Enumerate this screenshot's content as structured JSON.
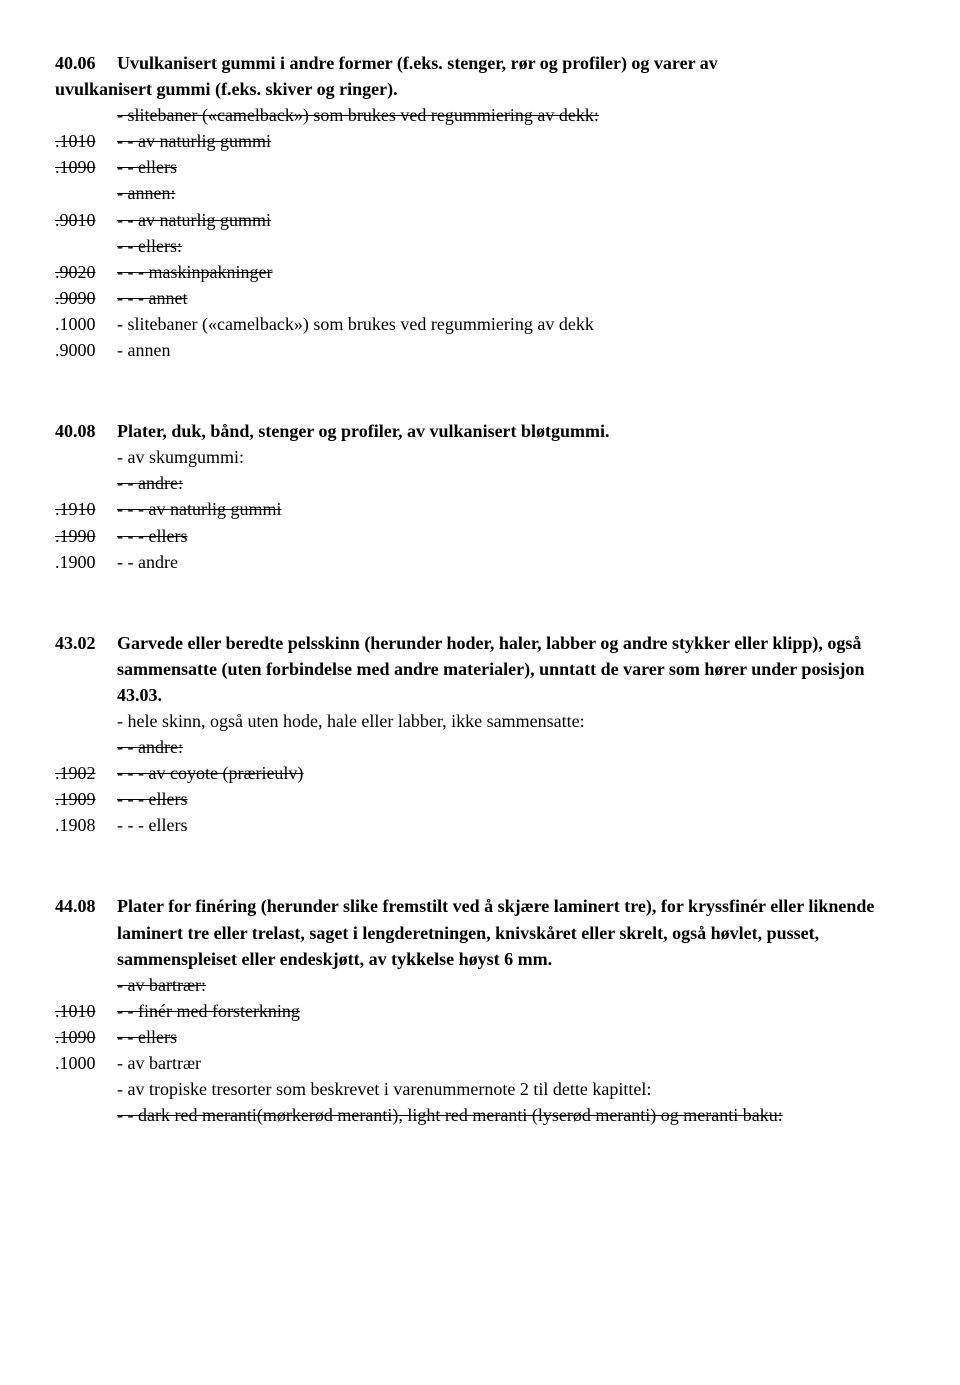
{
  "sections": [
    {
      "id": "s40-06",
      "heading_code": "40.06",
      "heading_text_line1": "Uvulkanisert gummi i andre former (f.eks. stenger, rør og profiler) og varer av",
      "heading_text_line2": "uvulkanisert gummi (f.eks. skiver og ringer).",
      "rows": [
        {
          "code": "",
          "text": "- slitebaner («camelback») som brukes ved regummiering av dekk:",
          "strike": true
        },
        {
          "code": ".1010",
          "text": "- - av naturlig gummi",
          "strike": true
        },
        {
          "code": ".1090",
          "text": "- - ellers",
          "strike": true
        },
        {
          "code": "",
          "text": "- annen:",
          "strike": true
        },
        {
          "code": ".9010",
          "text": "- - av naturlig gummi",
          "strike": true
        },
        {
          "code": "",
          "text": "- - ellers:",
          "strike": true
        },
        {
          "code": ".9020",
          "text": "- - - maskinpakninger",
          "strike": true
        },
        {
          "code": ".9090",
          "text": "- - - annet",
          "strike": true
        },
        {
          "code": ".1000",
          "text": "- slitebaner («camelback») som brukes ved regummiering av dekk",
          "strike": false
        },
        {
          "code": ".9000",
          "text": "- annen",
          "strike": false
        }
      ]
    },
    {
      "id": "s40-08",
      "heading_code": "40.08",
      "heading_text_line1": "Plater, duk, bånd, stenger og profiler, av vulkanisert bløtgummi.",
      "heading_text_line2": "",
      "rows": [
        {
          "code": "",
          "text": "- av skumgummi:",
          "strike": false
        },
        {
          "code": "",
          "text": "- - andre:",
          "strike": true
        },
        {
          "code": ".1910",
          "text": "- - - av naturlig gummi",
          "strike": true
        },
        {
          "code": ".1990",
          "text": "- - - ellers",
          "strike": true
        },
        {
          "code": ".1900",
          "text": "- - andre",
          "strike": false
        }
      ]
    },
    {
      "id": "s43-02",
      "heading_code": "43.02",
      "heading_text_line1": "Garvede eller beredte pelsskinn (herunder hoder, haler, labber og andre stykker eller klipp), også sammensatte (uten forbindelse med andre materialer), unntatt de varer som hører under posisjon 43.03.",
      "heading_text_line2": "",
      "rows": [
        {
          "code": "",
          "text": "- hele skinn, også uten hode, hale eller labber, ikke sammensatte:",
          "strike": false
        },
        {
          "code": "",
          "text": "- - andre:",
          "strike": true
        },
        {
          "code": ".1902",
          "text": "- - - av coyote (prærieulv)",
          "strike": true
        },
        {
          "code": ".1909",
          "text": "- - - ellers",
          "strike": true
        },
        {
          "code": ".1908",
          "text": "- - - ellers",
          "strike": false
        }
      ]
    },
    {
      "id": "s44-08",
      "heading_code": "44.08",
      "heading_text_line1": "Plater for finéring (herunder slike fremstilt ved å skjære laminert tre), for kryssfinér eller liknende laminert tre eller trelast, saget i lengderetningen, knivskåret eller skrelt, også høvlet, pusset, sammenspleiset eller endeskjøtt, av tykkelse høyst 6 mm.",
      "heading_text_line2": "",
      "rows": [
        {
          "code": "",
          "text": "- av bartrær:",
          "strike": true
        },
        {
          "code": ".1010",
          "text": "- - finér med forsterkning",
          "strike": true
        },
        {
          "code": ".1090",
          "text": "- - ellers",
          "strike": true
        },
        {
          "code": ".1000",
          "text": "- av bartrær",
          "strike": false
        },
        {
          "code": "",
          "text": "- av tropiske tresorter som beskrevet i varenummernote 2 til dette kapittel:",
          "strike": false
        },
        {
          "code": "",
          "text": "- - dark red meranti(mørkerød meranti), light red meranti (lyserød meranti) og meranti baku:",
          "strike": true
        }
      ]
    }
  ]
}
